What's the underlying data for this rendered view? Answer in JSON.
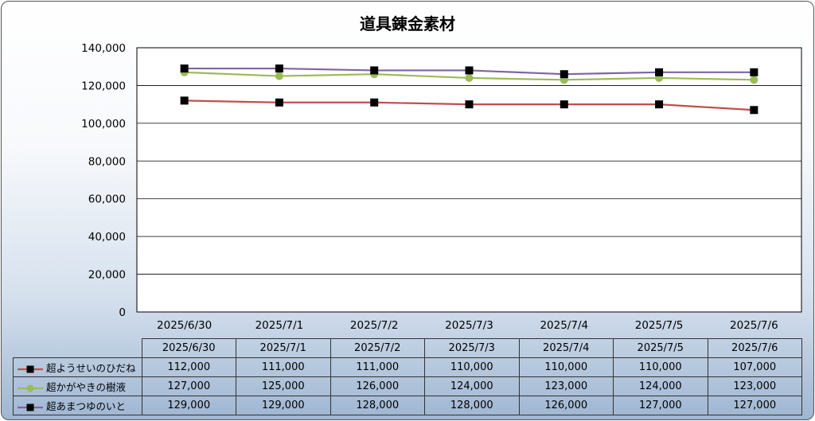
{
  "chart_data": {
    "type": "line",
    "title": "道具錬金素材",
    "categories": [
      "2025/6/30",
      "2025/7/1",
      "2025/7/2",
      "2025/7/3",
      "2025/7/4",
      "2025/7/5",
      "2025/7/6"
    ],
    "y_ticks": [
      "0",
      "20,000",
      "40,000",
      "60,000",
      "80,000",
      "100,000",
      "120,000",
      "140,000"
    ],
    "ylim": [
      0,
      140000
    ],
    "grid": true,
    "legend": "bottom-table",
    "series": [
      {
        "name": "超ようせいのひだね",
        "color": "#c0504d",
        "marker": "square",
        "values": [
          112000,
          111000,
          111000,
          110000,
          110000,
          110000,
          107000
        ],
        "labels": [
          "112,000",
          "111,000",
          "111,000",
          "110,000",
          "110,000",
          "110,000",
          "107,000"
        ]
      },
      {
        "name": "超かがやきの樹液",
        "color": "#9bbb59",
        "marker": "circle",
        "values": [
          127000,
          125000,
          126000,
          124000,
          123000,
          124000,
          123000
        ],
        "labels": [
          "127,000",
          "125,000",
          "126,000",
          "124,000",
          "123,000",
          "124,000",
          "123,000"
        ]
      },
      {
        "name": "超あまつゆのいと",
        "color": "#8064a2",
        "marker": "square",
        "values": [
          129000,
          129000,
          128000,
          128000,
          126000,
          127000,
          127000
        ],
        "labels": [
          "129,000",
          "129,000",
          "128,000",
          "128,000",
          "126,000",
          "127,000",
          "127,000"
        ]
      }
    ]
  }
}
